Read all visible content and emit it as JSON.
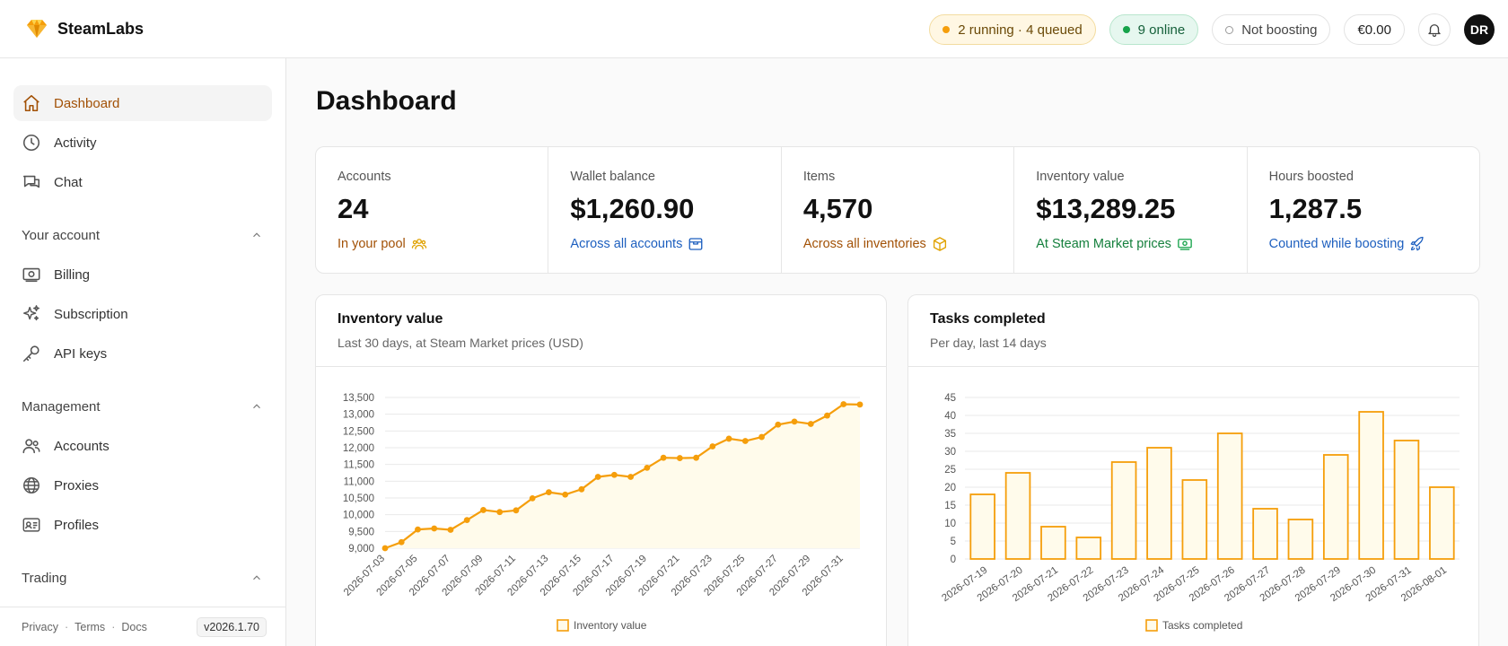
{
  "app": {
    "name": "SteamLabs"
  },
  "topbar": {
    "tasks_status": "2 running · 4 queued",
    "online_status": "9 online",
    "boost_status": "Not boosting",
    "balance": "€0.00",
    "user_initials": "DR"
  },
  "sidebar": {
    "items": [
      {
        "label": "Dashboard",
        "icon": "home-icon",
        "active": true
      },
      {
        "label": "Activity",
        "icon": "clock-icon"
      },
      {
        "label": "Chat",
        "icon": "chat-icon"
      }
    ],
    "groups": [
      {
        "title": "Your account",
        "items": [
          {
            "label": "Billing",
            "icon": "banknote-icon"
          },
          {
            "label": "Subscription",
            "icon": "sparkles-icon"
          },
          {
            "label": "API keys",
            "icon": "key-icon"
          }
        ]
      },
      {
        "title": "Management",
        "items": [
          {
            "label": "Accounts",
            "icon": "users-icon"
          },
          {
            "label": "Proxies",
            "icon": "globe-icon"
          },
          {
            "label": "Profiles",
            "icon": "id-card-icon"
          }
        ]
      },
      {
        "title": "Trading",
        "items": []
      }
    ],
    "footer": {
      "privacy": "Privacy",
      "terms": "Terms",
      "docs": "Docs",
      "version": "v2026.1.70"
    }
  },
  "main": {
    "title": "Dashboard",
    "stats": [
      {
        "label": "Accounts",
        "value": "24",
        "sub": "In your pool",
        "color": "#a25106",
        "icon": "users-icon"
      },
      {
        "label": "Wallet balance",
        "value": "$1,260.90",
        "sub": "Across all accounts",
        "color": "#1d5fbf",
        "icon": "wallet-icon"
      },
      {
        "label": "Items",
        "value": "4,570",
        "sub": "Across all inventories",
        "color": "#a25106",
        "icon": "box-icon"
      },
      {
        "label": "Inventory value",
        "value": "$13,289.25",
        "sub": "At Steam Market prices",
        "color": "#15803d",
        "icon": "cash-icon"
      },
      {
        "label": "Hours boosted",
        "value": "1,287.5",
        "sub": "Counted while boosting",
        "color": "#1d5fbf",
        "icon": "rocket-icon"
      }
    ],
    "inventory_card": {
      "title": "Inventory value",
      "subtitle": "Last 30 days, at Steam Market prices (USD)"
    },
    "tasks_card": {
      "title": "Tasks completed",
      "subtitle": "Per day, last 14 days"
    }
  },
  "colors": {
    "accent": "#f59e0b",
    "fill": "#fffbeb"
  },
  "chart_data": [
    {
      "type": "area",
      "x": [
        "2026-07-03",
        "2026-07-04",
        "2026-07-05",
        "2026-07-06",
        "2026-07-07",
        "2026-07-08",
        "2026-07-09",
        "2026-07-10",
        "2026-07-11",
        "2026-07-12",
        "2026-07-13",
        "2026-07-14",
        "2026-07-15",
        "2026-07-16",
        "2026-07-17",
        "2026-07-18",
        "2026-07-19",
        "2026-07-20",
        "2026-07-21",
        "2026-07-22",
        "2026-07-23",
        "2026-07-24",
        "2026-07-25",
        "2026-07-26",
        "2026-07-27",
        "2026-07-28",
        "2026-07-29",
        "2026-07-30",
        "2026-07-31",
        "2026-08-01"
      ],
      "x_tick_labels": [
        "2026-07-03",
        "2026-07-05",
        "2026-07-07",
        "2026-07-09",
        "2026-07-11",
        "2026-07-13",
        "2026-07-15",
        "2026-07-17",
        "2026-07-19",
        "2026-07-21",
        "2026-07-23",
        "2026-07-25",
        "2026-07-27",
        "2026-07-29",
        "2026-07-31"
      ],
      "series": [
        {
          "name": "Inventory value",
          "values": [
            9000,
            9180,
            9560,
            9590,
            9550,
            9840,
            10140,
            10080,
            10130,
            10490,
            10670,
            10600,
            10760,
            11130,
            11190,
            11130,
            11400,
            11700,
            11690,
            11700,
            12040,
            12270,
            12200,
            12320,
            12690,
            12780,
            12710,
            12960,
            13300,
            13290
          ]
        }
      ],
      "yticks": [
        "9,000",
        "9,500",
        "10,000",
        "10,500",
        "11,000",
        "11,500",
        "12,000",
        "12,500",
        "13,000",
        "13,500"
      ],
      "ylim": [
        9000,
        13500
      ],
      "grid": true,
      "legend": "bottom"
    },
    {
      "type": "bar",
      "categories": [
        "2026-07-19",
        "2026-07-20",
        "2026-07-21",
        "2026-07-22",
        "2026-07-23",
        "2026-07-24",
        "2026-07-25",
        "2026-07-26",
        "2026-07-27",
        "2026-07-28",
        "2026-07-29",
        "2026-07-30",
        "2026-07-31",
        "2026-08-01"
      ],
      "series": [
        {
          "name": "Tasks completed",
          "values": [
            18,
            24,
            9,
            6,
            27,
            31,
            22,
            35,
            14,
            11,
            29,
            41,
            33,
            20
          ]
        }
      ],
      "yticks": [
        "0",
        "5",
        "10",
        "15",
        "20",
        "25",
        "30",
        "35",
        "40",
        "45"
      ],
      "ylim": [
        0,
        45
      ],
      "grid": true,
      "legend": "bottom"
    }
  ]
}
